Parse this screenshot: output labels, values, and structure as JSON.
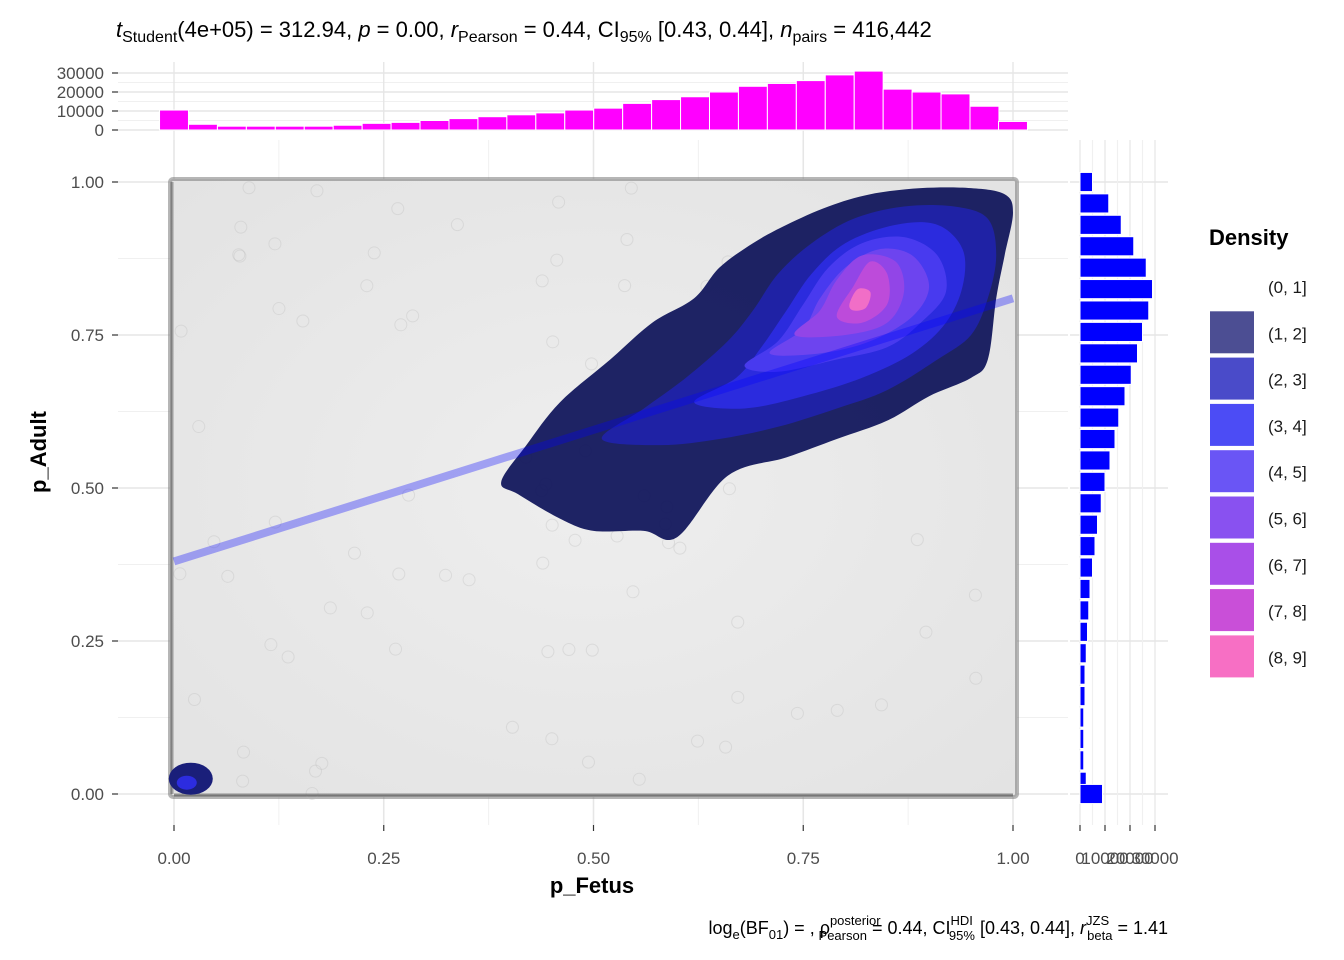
{
  "subtitle": {
    "t_sym": "t",
    "t_sub": "Student",
    "t_rest": "(4e+05) = 312.94, ",
    "p_sym": "p",
    "p_rest": " = 0.00, ",
    "r_sym": "r",
    "r_sub": "Pearson",
    "r_rest": " = 0.44, CI",
    "ci_sub": "95%",
    "ci_rest": " [0.43, 0.44], ",
    "n_sym": "n",
    "n_sub": "pairs",
    "n_rest": " = 416,442"
  },
  "caption": {
    "log_pre": "log",
    "log_sub": "e",
    "log_mid": "(BF",
    "bf_sub": "01",
    "log_post": ") = , ",
    "rho_sym": "ρ",
    "rho_sup": "posterior",
    "rho_sub": "Pearson",
    "rho_rest": " = 0.44, CI",
    "hdi_sup": "HDI",
    "hdi_sub": "95%",
    "hdi_rest": " [0.43, 0.44], ",
    "r_sym": "r",
    "r_sup": "JZS",
    "r_sub": "beta",
    "r_rest": " = 1.41"
  },
  "colors": {
    "top_hist": "#FF00FF",
    "right_hist": "#0000FF",
    "regression_line": "#0000FF",
    "contour_levels": [
      "#151A5E",
      "#1F22A8",
      "#2C2CE0",
      "#4A3BEF",
      "#6E45EE",
      "#9446E6",
      "#BE4CDA",
      "#F36FC6"
    ]
  },
  "chart_data": {
    "type": "scatter",
    "xlabel": "p_Fetus",
    "ylabel": "p_Adult",
    "xlim": [
      0,
      1
    ],
    "ylim": [
      0,
      1
    ],
    "x_ticks": [
      "0.00",
      "0.25",
      "0.50",
      "0.75",
      "1.00"
    ],
    "y_ticks": [
      "0.00",
      "0.25",
      "0.50",
      "0.75",
      "1.00"
    ],
    "grid": true,
    "regression_line": {
      "x": [
        0,
        1
      ],
      "y": [
        0.38,
        0.81
      ]
    },
    "contours": [
      {
        "level": "(1, 2]",
        "path": [
          [
            0.39,
            0.51
          ],
          [
            0.42,
            0.57
          ],
          [
            0.46,
            0.64
          ],
          [
            0.52,
            0.71
          ],
          [
            0.57,
            0.77
          ],
          [
            0.62,
            0.81
          ],
          [
            0.65,
            0.86
          ],
          [
            0.69,
            0.9
          ],
          [
            0.73,
            0.93
          ],
          [
            0.78,
            0.96
          ],
          [
            0.83,
            0.98
          ],
          [
            0.89,
            0.99
          ],
          [
            0.95,
            0.99
          ],
          [
            0.99,
            0.98
          ],
          [
            1.0,
            0.95
          ],
          [
            0.99,
            0.88
          ],
          [
            0.98,
            0.81
          ],
          [
            0.97,
            0.71
          ],
          [
            0.95,
            0.68
          ],
          [
            0.9,
            0.65
          ],
          [
            0.85,
            0.61
          ],
          [
            0.79,
            0.58
          ],
          [
            0.73,
            0.55
          ],
          [
            0.66,
            0.52
          ],
          [
            0.6,
            0.42
          ],
          [
            0.56,
            0.43
          ],
          [
            0.5,
            0.43
          ],
          [
            0.46,
            0.45
          ],
          [
            0.41,
            0.49
          ]
        ]
      },
      {
        "level": "(2, 3]",
        "path": [
          [
            0.51,
            0.58
          ],
          [
            0.56,
            0.63
          ],
          [
            0.61,
            0.68
          ],
          [
            0.66,
            0.74
          ],
          [
            0.69,
            0.79
          ],
          [
            0.72,
            0.85
          ],
          [
            0.76,
            0.9
          ],
          [
            0.81,
            0.94
          ],
          [
            0.87,
            0.96
          ],
          [
            0.93,
            0.96
          ],
          [
            0.97,
            0.94
          ],
          [
            0.98,
            0.88
          ],
          [
            0.97,
            0.81
          ],
          [
            0.95,
            0.75
          ],
          [
            0.91,
            0.71
          ],
          [
            0.85,
            0.66
          ],
          [
            0.79,
            0.63
          ],
          [
            0.72,
            0.6
          ],
          [
            0.65,
            0.58
          ],
          [
            0.58,
            0.57
          ]
        ]
      },
      {
        "level": "(3, 4]",
        "path": [
          [
            0.62,
            0.64
          ],
          [
            0.67,
            0.68
          ],
          [
            0.7,
            0.73
          ],
          [
            0.73,
            0.79
          ],
          [
            0.76,
            0.85
          ],
          [
            0.8,
            0.9
          ],
          [
            0.86,
            0.93
          ],
          [
            0.91,
            0.93
          ],
          [
            0.94,
            0.89
          ],
          [
            0.94,
            0.83
          ],
          [
            0.92,
            0.77
          ],
          [
            0.88,
            0.72
          ],
          [
            0.82,
            0.68
          ],
          [
            0.75,
            0.65
          ],
          [
            0.68,
            0.63
          ]
        ]
      },
      {
        "level": "(4, 5]",
        "path": [
          [
            0.68,
            0.7
          ],
          [
            0.72,
            0.74
          ],
          [
            0.75,
            0.8
          ],
          [
            0.78,
            0.86
          ],
          [
            0.82,
            0.9
          ],
          [
            0.87,
            0.91
          ],
          [
            0.91,
            0.88
          ],
          [
            0.92,
            0.82
          ],
          [
            0.89,
            0.77
          ],
          [
            0.85,
            0.73
          ],
          [
            0.79,
            0.71
          ],
          [
            0.72,
            0.69
          ]
        ]
      },
      {
        "level": "(5, 6]",
        "path": [
          [
            0.71,
            0.72
          ],
          [
            0.75,
            0.76
          ],
          [
            0.77,
            0.81
          ],
          [
            0.8,
            0.86
          ],
          [
            0.84,
            0.89
          ],
          [
            0.88,
            0.88
          ],
          [
            0.9,
            0.83
          ],
          [
            0.88,
            0.78
          ],
          [
            0.83,
            0.74
          ],
          [
            0.77,
            0.72
          ]
        ]
      },
      {
        "level": "(6, 7]",
        "path": [
          [
            0.74,
            0.75
          ],
          [
            0.77,
            0.79
          ],
          [
            0.79,
            0.84
          ],
          [
            0.82,
            0.88
          ],
          [
            0.86,
            0.87
          ],
          [
            0.87,
            0.82
          ],
          [
            0.85,
            0.77
          ],
          [
            0.8,
            0.75
          ]
        ]
      },
      {
        "level": "(7, 8]",
        "path": [
          [
            0.79,
            0.78
          ],
          [
            0.81,
            0.83
          ],
          [
            0.83,
            0.87
          ],
          [
            0.85,
            0.85
          ],
          [
            0.85,
            0.8
          ],
          [
            0.82,
            0.77
          ]
        ]
      },
      {
        "level": "(8, 9]",
        "path": [
          [
            0.805,
            0.8
          ],
          [
            0.815,
            0.825
          ],
          [
            0.83,
            0.82
          ],
          [
            0.825,
            0.795
          ],
          [
            0.81,
            0.79
          ]
        ]
      }
    ],
    "corner_blob": {
      "cx": 0.02,
      "cy": 0.025
    },
    "top_histogram": {
      "yticks": [
        "0",
        "10000",
        "20000",
        "30000"
      ],
      "bin_centers": [
        0.0,
        0.0345,
        0.069,
        0.1035,
        0.138,
        0.1725,
        0.207,
        0.2415,
        0.276,
        0.3105,
        0.345,
        0.3795,
        0.414,
        0.4485,
        0.483,
        0.5175,
        0.552,
        0.5865,
        0.621,
        0.6555,
        0.69,
        0.7245,
        0.759,
        0.7935,
        0.828,
        0.8625,
        0.897,
        0.9315,
        0.966,
        1.0
      ],
      "values": [
        10500,
        3000,
        2000,
        2000,
        2000,
        2000,
        2500,
        3500,
        4000,
        5000,
        6000,
        7000,
        8000,
        9000,
        10500,
        11500,
        14000,
        16000,
        17500,
        20000,
        23000,
        24500,
        26000,
        29000,
        31000,
        21500,
        20000,
        19000,
        12500,
        4500
      ]
    },
    "right_histogram": {
      "xticks": [
        "0",
        "10000",
        "20000",
        "30000"
      ],
      "bin_centers": [
        1.0,
        0.965,
        0.93,
        0.895,
        0.86,
        0.825,
        0.79,
        0.755,
        0.72,
        0.685,
        0.65,
        0.615,
        0.58,
        0.545,
        0.51,
        0.475,
        0.44,
        0.405,
        0.37,
        0.335,
        0.3,
        0.265,
        0.23,
        0.195,
        0.16,
        0.125,
        0.09,
        0.055,
        0.02,
        0.0
      ],
      "values": [
        5000,
        11500,
        16500,
        21500,
        26500,
        29000,
        27500,
        25000,
        23000,
        20500,
        18000,
        15500,
        14000,
        12000,
        10000,
        8500,
        7000,
        6000,
        5000,
        4000,
        3500,
        3000,
        2500,
        2000,
        2000,
        1500,
        1500,
        1500,
        2500,
        9000
      ]
    },
    "legend": {
      "title": "Density",
      "items": [
        {
          "label": "(0, 1]",
          "color": "#FFFFFF"
        },
        {
          "label": "(1, 2]",
          "color": "#4C4E93"
        },
        {
          "label": "(2, 3]",
          "color": "#4A4BC9"
        },
        {
          "label": "(3, 4]",
          "color": "#4C4CF5"
        },
        {
          "label": "(4, 5]",
          "color": "#6A55F5"
        },
        {
          "label": "(5, 6]",
          "color": "#8951F0"
        },
        {
          "label": "(6, 7]",
          "color": "#A94FE8"
        },
        {
          "label": "(7, 8]",
          "color": "#C94FD8"
        },
        {
          "label": "(8, 9]",
          "color": "#F76FC4"
        }
      ]
    }
  }
}
